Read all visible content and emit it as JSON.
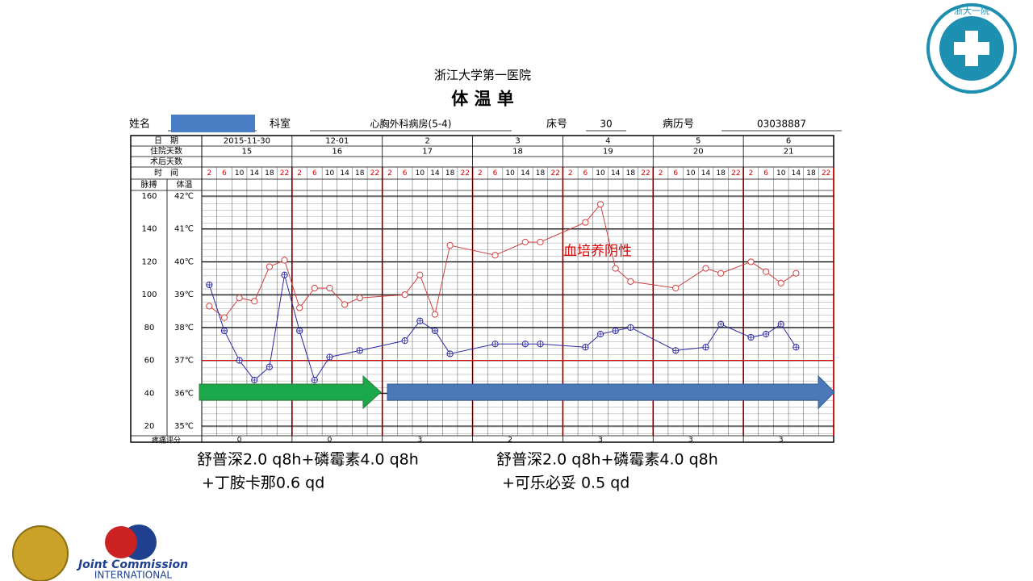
{
  "header": {
    "hospital": "浙江大学第一医院",
    "title": "体 温 单",
    "fields": [
      {
        "label": "姓名",
        "value": null
      },
      {
        "label": "科室",
        "value": "心胸外科病房(5-4)"
      },
      {
        "label": "床号",
        "value": "30"
      },
      {
        "label": "病历号",
        "value": "03038887"
      }
    ]
  },
  "table": {
    "row_labels": [
      "日　期",
      "住院天数",
      "术后天数",
      "时　间"
    ],
    "dates": [
      "2015-11-30",
      "12-01",
      "2",
      "3",
      "4",
      "5",
      "6"
    ],
    "hospital_days": [
      "15",
      "16",
      "17",
      "18",
      "19",
      "20",
      "21"
    ],
    "time_slots": [
      "2",
      "6",
      "10",
      "14",
      "18",
      "22"
    ],
    "pulse_header": "脉搏",
    "temp_header": "体温",
    "pain_label": "疼痛评分",
    "pain_scores": [
      "0",
      "0",
      "3",
      "2",
      "3",
      "3",
      "3"
    ]
  },
  "chart_data": {
    "type": "line",
    "xlim": [
      -0.5,
      41.5
    ],
    "ylim": [
      20,
      160
    ],
    "yticks": [
      20,
      40,
      60,
      80,
      100,
      120,
      140,
      160
    ],
    "y2lim": [
      35,
      42
    ],
    "y2ticks": [
      {
        "value": 35,
        "label": "35℃"
      },
      {
        "value": 36,
        "label": "36℃"
      },
      {
        "value": 37,
        "label": "37℃"
      },
      {
        "value": 38,
        "label": "38℃"
      },
      {
        "value": 39,
        "label": "39℃"
      },
      {
        "value": 40,
        "label": "40℃"
      },
      {
        "value": 41,
        "label": "41℃"
      },
      {
        "value": 42,
        "label": "42℃"
      }
    ],
    "reference_y2": 37,
    "grid": true,
    "annotation": "血培养阴性",
    "series": [
      {
        "name": "脉搏",
        "color": "#d04040",
        "axis": "y",
        "x": [
          0,
          1,
          2,
          3,
          4,
          5,
          6,
          7,
          8,
          9,
          10,
          13,
          14,
          15,
          16,
          19,
          21,
          22,
          25,
          26,
          27,
          28,
          31,
          33,
          34,
          36,
          37,
          38,
          39
        ],
        "values": [
          93,
          86,
          98,
          96,
          117,
          121,
          92,
          104,
          104,
          94,
          98,
          100,
          112,
          88,
          130,
          124,
          132,
          132,
          144,
          155,
          116,
          108,
          104,
          116,
          113,
          120,
          114,
          107,
          113
        ]
      },
      {
        "name": "体温",
        "color": "#2a2aa0",
        "axis": "y2",
        "x": [
          0,
          1,
          2,
          3,
          4,
          5,
          6,
          7,
          8,
          10,
          13,
          14,
          15,
          16,
          19,
          21,
          22,
          25,
          26,
          27,
          28,
          31,
          33,
          34,
          36,
          37,
          38,
          39
        ],
        "values": [
          39.3,
          37.9,
          37.0,
          36.4,
          36.8,
          39.6,
          37.9,
          36.4,
          37.1,
          37.3,
          37.6,
          38.2,
          37.9,
          37.2,
          37.5,
          37.5,
          37.5,
          37.4,
          37.8,
          37.9,
          38.0,
          37.3,
          37.4,
          38.1,
          37.7,
          37.8,
          38.1,
          37.4
        ]
      }
    ]
  },
  "treatment": {
    "phase1": [
      "舒普深2.0 q8h+磷霉素4.0 q8h",
      "+丁胺卡那0.6 qd"
    ],
    "phase2": [
      "舒普深2.0 q8h+磷霉素4.0 q8h",
      "+可乐必妥 0.5 qd"
    ]
  },
  "logos": {
    "jci_name": "Joint Commission",
    "jci_sub": "INTERNATIONAL",
    "hospital_logo": "浙大一院"
  }
}
